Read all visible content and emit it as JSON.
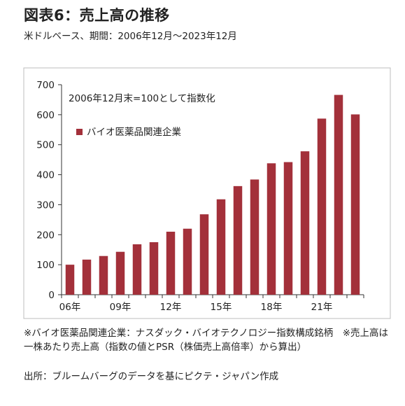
{
  "header": {
    "title": "図表6：売上高の推移",
    "subtitle": "米ドルベース、期間：2006年12月～2023年12月"
  },
  "chart_data": {
    "type": "bar",
    "annotation": "2006年12月末=100として指数化",
    "series": [
      {
        "name": "バイオ医薬品関連企業",
        "color": "#a3303a",
        "values": [
          100,
          117,
          129,
          143,
          168,
          175,
          210,
          220,
          268,
          318,
          362,
          384,
          438,
          442,
          478,
          587,
          666,
          601
        ]
      }
    ],
    "x_tick_labels": [
      {
        "index": 0,
        "label": "06年"
      },
      {
        "index": 3,
        "label": "09年"
      },
      {
        "index": 6,
        "label": "12年"
      },
      {
        "index": 9,
        "label": "15年"
      },
      {
        "index": 12,
        "label": "18年"
      },
      {
        "index": 15,
        "label": "21年"
      }
    ],
    "ylim": [
      0,
      700
    ],
    "yticks": [
      0,
      100,
      200,
      300,
      400,
      500,
      600,
      700
    ],
    "grid": false,
    "legend_position": "top-left"
  },
  "footnotes": {
    "note1": "※バイオ医薬品関連企業：ナスダック・バイオテクノロジー指数構成銘柄　※売上高は一株あたり売上高（指数の値とPSR（株価売上高倍率）から算出）",
    "source": "出所：ブルームバーグのデータを基にピクテ・ジャパン作成"
  }
}
